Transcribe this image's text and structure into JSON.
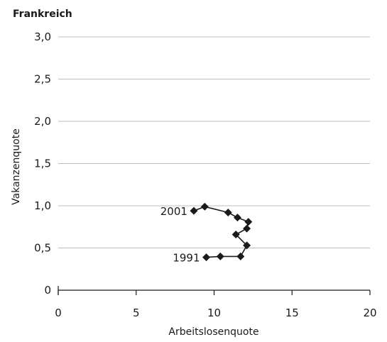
{
  "chart_data": {
    "type": "line",
    "title": "Frankreich",
    "xlabel": "Arbeitslosenquote",
    "ylabel": "Vakanzenquote",
    "xlim": [
      0,
      20
    ],
    "ylim": [
      0,
      3.0
    ],
    "x_ticks": [
      0,
      5,
      10,
      15,
      20
    ],
    "x_tick_labels": [
      "0",
      "5",
      "10",
      "15",
      "20"
    ],
    "y_ticks": [
      0,
      0.5,
      1.0,
      1.5,
      2.0,
      2.5,
      3.0
    ],
    "y_tick_labels": [
      "0",
      "0,5",
      "1,0",
      "1,5",
      "2,0",
      "2,5",
      "3,0"
    ],
    "grid": "horizontal",
    "series": [
      {
        "color": "#1a1a1a",
        "marker": "diamond",
        "points": [
          {
            "x": 9.5,
            "y": 0.39
          },
          {
            "x": 10.4,
            "y": 0.4
          },
          {
            "x": 11.7,
            "y": 0.4
          },
          {
            "x": 12.1,
            "y": 0.53
          },
          {
            "x": 11.4,
            "y": 0.66
          },
          {
            "x": 12.1,
            "y": 0.73
          },
          {
            "x": 12.2,
            "y": 0.81
          },
          {
            "x": 11.5,
            "y": 0.86
          },
          {
            "x": 10.9,
            "y": 0.92
          },
          {
            "x": 9.4,
            "y": 0.99
          },
          {
            "x": 8.7,
            "y": 0.94
          }
        ]
      }
    ],
    "annotations": [
      {
        "text": "1991",
        "point_index": 0,
        "anchor": "left"
      },
      {
        "text": "2001",
        "point_index": 10,
        "anchor": "left"
      }
    ]
  }
}
